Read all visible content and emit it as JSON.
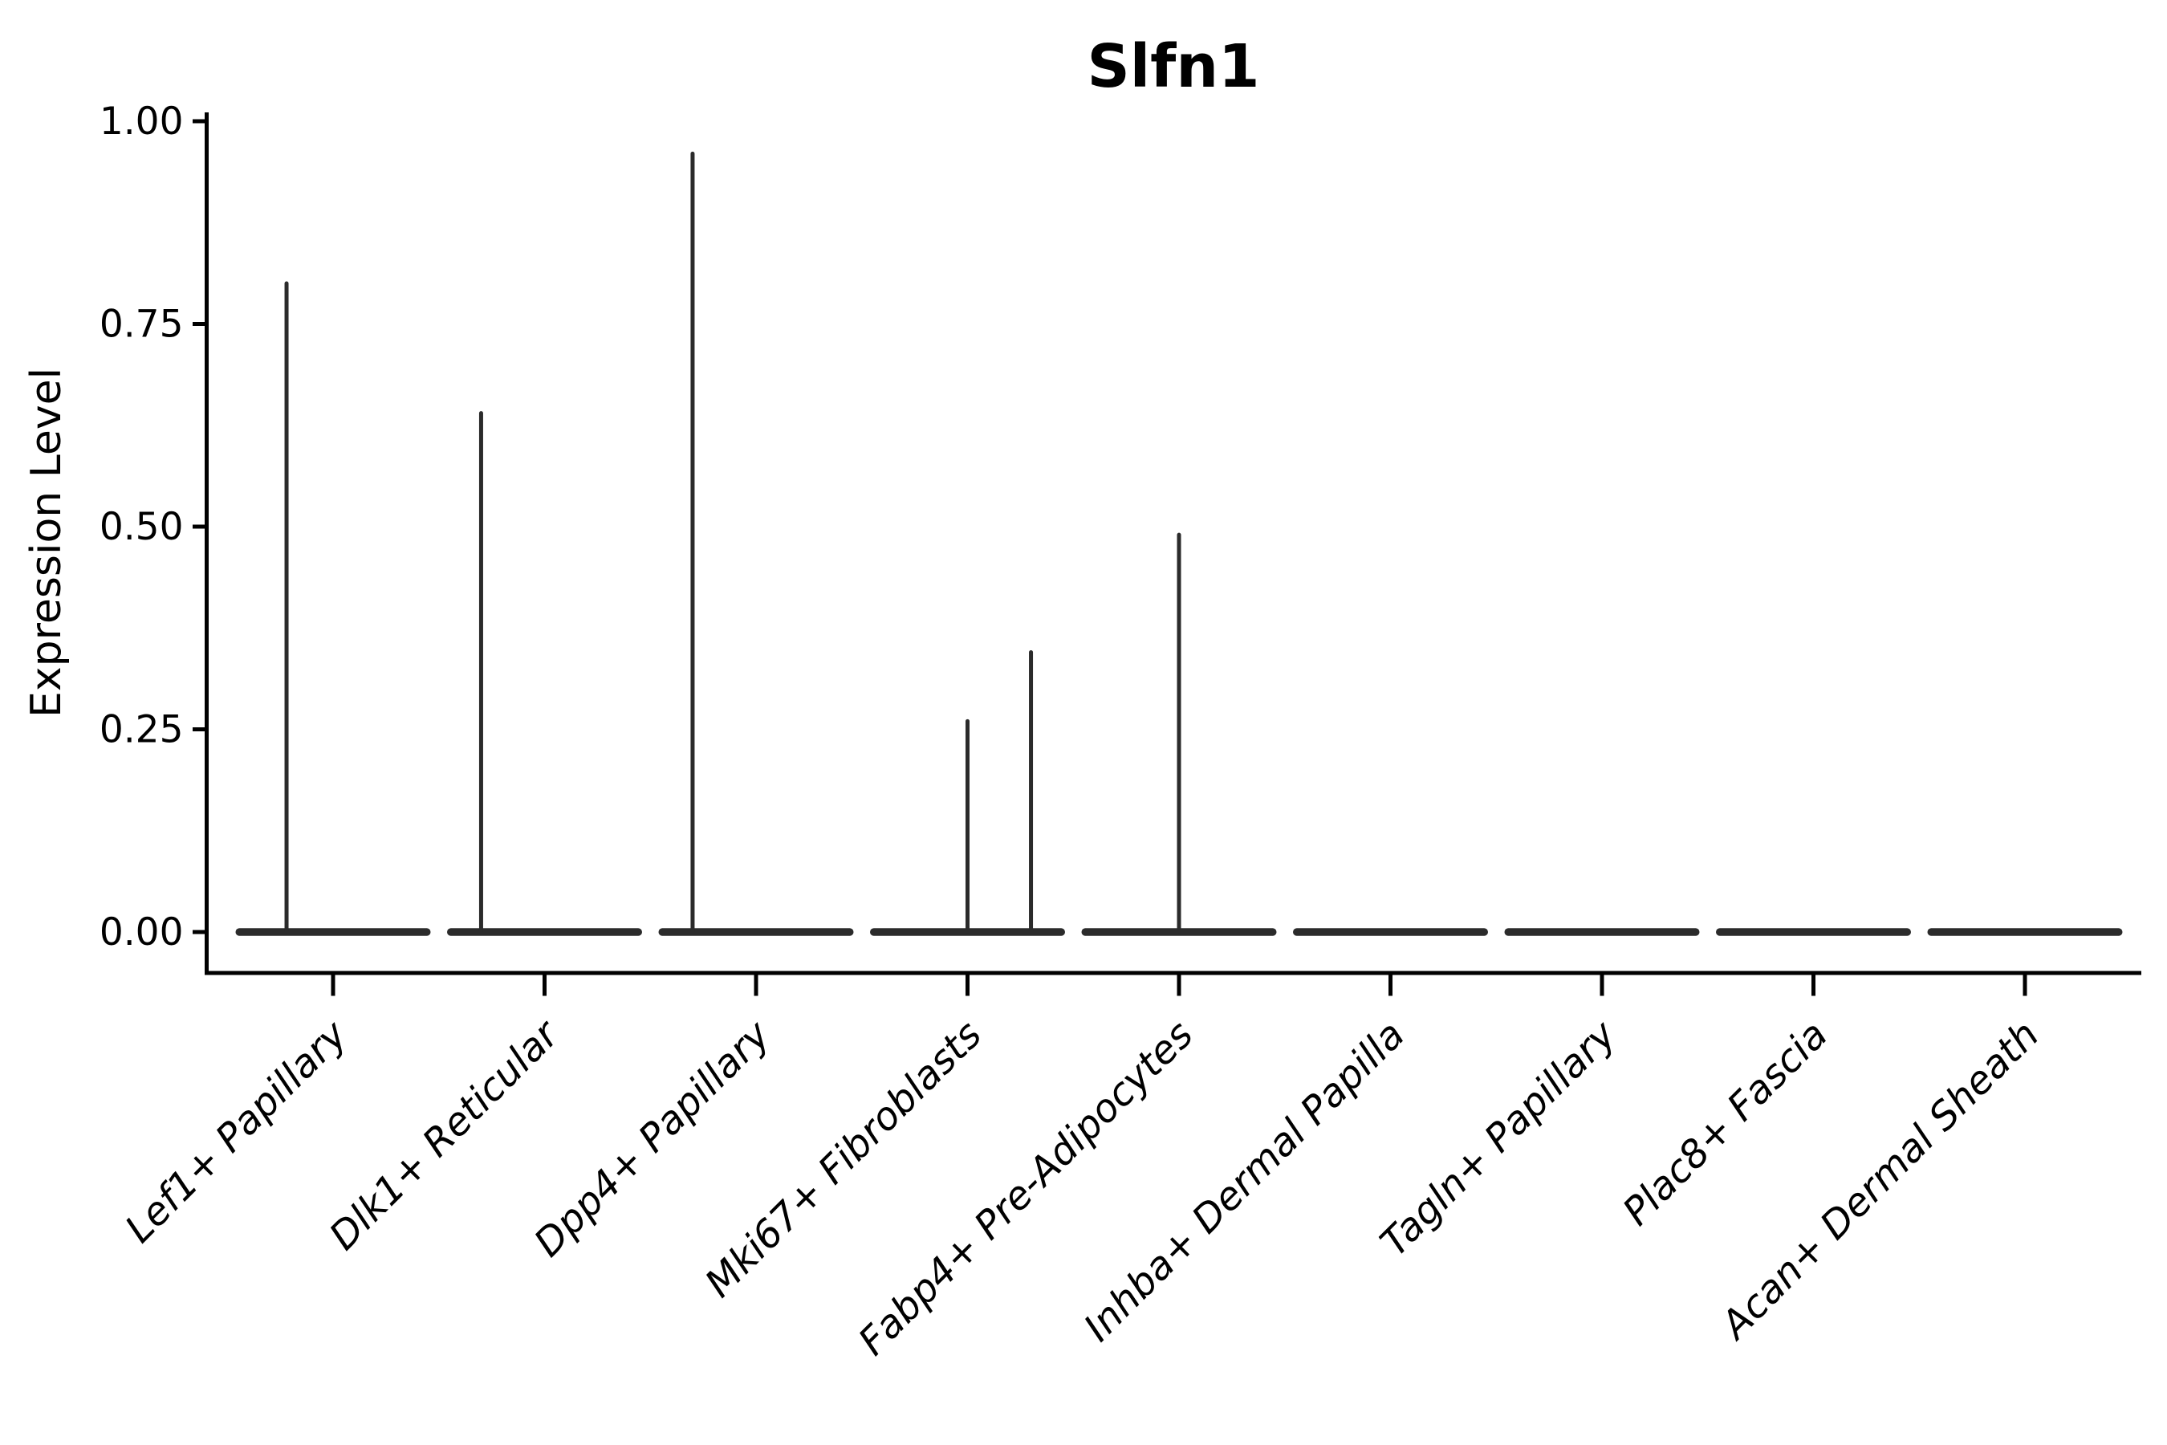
{
  "chart_data": {
    "type": "violin",
    "title": "Slfn1",
    "ylabel": "Expression Level",
    "xlabel": "",
    "ylim": [
      0,
      1.0
    ],
    "grid": "off",
    "legend": "none",
    "y_ticks": [
      {
        "value": 0.0,
        "label": "0.00"
      },
      {
        "value": 0.25,
        "label": "0.25"
      },
      {
        "value": 0.5,
        "label": "0.50"
      },
      {
        "value": 0.75,
        "label": "0.75"
      },
      {
        "value": 1.0,
        "label": "1.00"
      }
    ],
    "categories": [
      "Lef1+ Papillary",
      "Dlk1+ Reticular",
      "Dpp4+ Papillary",
      "Mki67+ Fibroblasts",
      "Fabp4+ Pre-Adipocytes",
      "Inhba+ Dermal Papilla",
      "Tagln+ Papillary",
      "Plac8+ Fascia",
      "Acan+ Dermal Sheath"
    ],
    "violins": [
      {
        "category": "Lef1+ Papillary",
        "base_value": 0,
        "peaks": [
          {
            "value": 0.8,
            "x_offset": -0.22
          }
        ]
      },
      {
        "category": "Dlk1+ Reticular",
        "base_value": 0,
        "peaks": [
          {
            "value": 0.64,
            "x_offset": -0.3
          }
        ]
      },
      {
        "category": "Dpp4+ Papillary",
        "base_value": 0,
        "peaks": [
          {
            "value": 0.96,
            "x_offset": -0.3
          }
        ]
      },
      {
        "category": "Mki67+ Fibroblasts",
        "base_value": 0,
        "peaks": [
          {
            "value": 0.26,
            "x_offset": 0.0
          },
          {
            "value": 0.345,
            "x_offset": 0.3
          }
        ]
      },
      {
        "category": "Fabp4+ Pre-Adipocytes",
        "base_value": 0,
        "peaks": [
          {
            "value": 0.49,
            "x_offset": 0.0
          }
        ]
      },
      {
        "category": "Inhba+ Dermal Papilla",
        "base_value": 0,
        "peaks": []
      },
      {
        "category": "Tagln+ Papillary",
        "base_value": 0,
        "peaks": []
      },
      {
        "category": "Plac8+ Fascia",
        "base_value": 0,
        "peaks": []
      },
      {
        "category": "Acan+ Dermal Sheath",
        "base_value": 0,
        "peaks": []
      }
    ],
    "style": {
      "violin_color": "#2b2b2b",
      "axis_color": "#000000",
      "text_color": "#000000",
      "background": "#ffffff",
      "x_label_rotation_deg": 45,
      "x_label_style": "italic"
    }
  }
}
